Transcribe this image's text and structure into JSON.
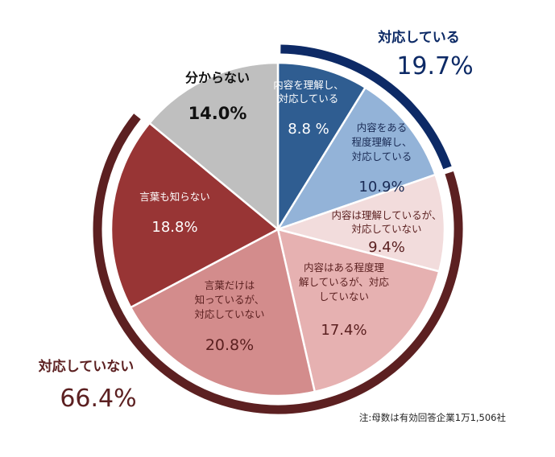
{
  "chart_data": {
    "type": "pie",
    "unit": "%",
    "slices": [
      {
        "label_lines": [
          "内容を理解し、",
          "対応している"
        ],
        "value": 8.8,
        "value_text": "8.8 %",
        "color": "#2f5d91",
        "text_color": "#ffffff"
      },
      {
        "label_lines": [
          "内容をある",
          "程度理解し、",
          "対応している"
        ],
        "value": 10.9,
        "value_text": "10.9%",
        "color": "#93b3d8",
        "text_color": "#1a2b55"
      },
      {
        "label_lines": [
          "内容は理解しているが、",
          "対応していない"
        ],
        "value": 9.4,
        "value_text": "9.4%",
        "color": "#f2dcdc",
        "text_color": "#5a1f1f"
      },
      {
        "label_lines": [
          "内容はある程度理",
          "解しているが、対応",
          "していない"
        ],
        "value": 17.4,
        "value_text": "17.4%",
        "color": "#e6b1b1",
        "text_color": "#5a1f1f"
      },
      {
        "label_lines": [
          "言葉だけは",
          "知っているが、",
          "対応していない"
        ],
        "value": 20.8,
        "value_text": "20.8%",
        "color": "#d38c8c",
        "text_color": "#5a1f1f"
      },
      {
        "label_lines": [
          "言葉も知らない"
        ],
        "value": 18.8,
        "value_text": "18.8%",
        "color": "#983535",
        "text_color": "#ffffff"
      },
      {
        "label_lines": [
          "分からない"
        ],
        "value": 14.0,
        "value_text": "14.0%",
        "color": "#bfbfbf",
        "text_color": "#111111"
      }
    ],
    "groups": [
      {
        "label": "対応している",
        "value": 19.7,
        "value_text": "19.7%",
        "color": "#0d2a66",
        "covers": [
          0,
          1
        ]
      },
      {
        "label": "対応していない",
        "value": 66.4,
        "value_text": "66.4%",
        "color": "#5c2021",
        "covers": [
          2,
          3,
          4,
          5
        ]
      }
    ],
    "note": "注:母数は有効回答企業1万1,506社"
  }
}
